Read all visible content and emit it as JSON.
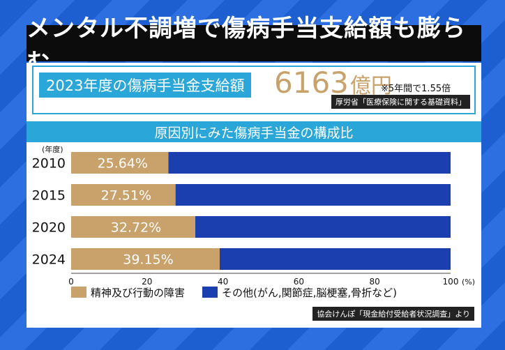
{
  "header": {
    "title": "メンタル不調増で傷病手当支給額も膨らむ"
  },
  "stat": {
    "label": "2023年度の傷病手当金支給額",
    "value": "6163",
    "unit": "億円",
    "note": "※5年間で1.55倍",
    "source": "厚労省「医療保険に関する基礎資料」"
  },
  "section": {
    "title": "原因別にみた傷病手当金の構成比"
  },
  "chart_data": {
    "type": "bar",
    "orientation": "horizontal",
    "stacked": true,
    "year_unit_label": "(年度)",
    "categories": [
      "2010",
      "2015",
      "2020",
      "2024"
    ],
    "series": [
      {
        "name": "精神及び行動の障害",
        "values": [
          25.64,
          27.51,
          32.72,
          39.15
        ],
        "color": "#c8a16b"
      },
      {
        "name": "その他(がん,関節症,脳梗塞,骨折など)",
        "values": [
          74.36,
          72.49,
          67.28,
          60.85
        ],
        "color": "#1c3fb0"
      }
    ],
    "data_labels": [
      "25.64%",
      "27.51%",
      "32.72%",
      "39.15%"
    ],
    "x_ticks": [
      "0",
      "20",
      "40",
      "60",
      "80",
      "100"
    ],
    "x_unit": "(%)",
    "xlim": [
      0,
      100
    ],
    "legend_position": "bottom",
    "grid": false
  },
  "source2": "協会けんぽ「現金給付受給者状況調査」より"
}
